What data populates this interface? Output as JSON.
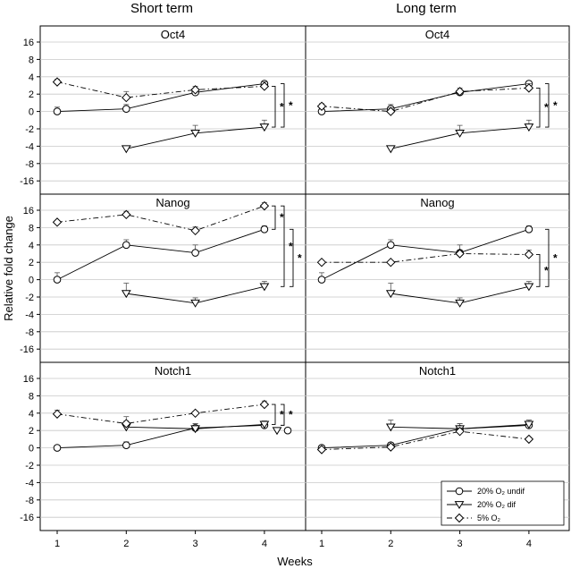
{
  "chart_data": {
    "type": "line",
    "column_titles": [
      "Short term",
      "Long term"
    ],
    "xlabel": "Weeks",
    "ylabel": "Relative fold change",
    "x_ticks": [
      "1",
      "2",
      "3",
      "4"
    ],
    "y_ticks": [
      "16",
      "8",
      "4",
      "2",
      "0",
      "-2",
      "-4",
      "-8",
      "-16"
    ],
    "y_scale": "symmetric-log (each gridline one step)",
    "grid": "horizontal",
    "legend": {
      "position": "bottom-right",
      "entries": [
        {
          "text": "20% O₂ undif",
          "marker": "circle",
          "line": "solid"
        },
        {
          "text": "20% O₂ dif",
          "marker": "triangle-down",
          "line": "solid"
        },
        {
          "text": "5% O₂",
          "marker": "diamond",
          "line": "dash-dot"
        }
      ]
    },
    "significance_mark": "*",
    "panels": [
      {
        "row": 0,
        "col": 0,
        "title": "Oct4",
        "series": [
          {
            "name": "20% O₂ undif",
            "x": [
              1,
              2,
              3,
              4
            ],
            "y": [
              0,
              0.3,
              2.2,
              3.2
            ],
            "err": [
              0.5,
              0.5,
              0.3,
              0.3
            ]
          },
          {
            "name": "20% O₂ dif",
            "x": [
              2,
              3,
              4
            ],
            "y": [
              -4.6,
              -2.5,
              -1.8
            ],
            "err": [
              0.6,
              0.9,
              0.8
            ]
          },
          {
            "name": "5% O₂",
            "x": [
              1,
              2,
              3,
              4
            ],
            "y": [
              3.4,
              1.6,
              2.5,
              2.9
            ],
            "err": [
              0.3,
              0.7,
              0.4,
              0.5
            ]
          }
        ],
        "brackets": [
          {
            "from": 2.9,
            "to": -1.8,
            "label": "*"
          },
          {
            "from": 3.2,
            "to": -1.8,
            "label": "*"
          }
        ]
      },
      {
        "row": 0,
        "col": 1,
        "title": "Oct4",
        "series": [
          {
            "name": "20% O₂ undif",
            "x": [
              1,
              2,
              3,
              4
            ],
            "y": [
              0,
              0.3,
              2.2,
              3.2
            ],
            "err": [
              0.5,
              0.5,
              0.3,
              0.3
            ]
          },
          {
            "name": "20% O₂ dif",
            "x": [
              2,
              3,
              4
            ],
            "y": [
              -4.6,
              -2.5,
              -1.8
            ],
            "err": [
              0.6,
              0.9,
              0.8
            ]
          },
          {
            "name": "5% O₂",
            "x": [
              1,
              2,
              3,
              4
            ],
            "y": [
              0.6,
              0,
              2.3,
              2.7
            ],
            "err": [
              0.3,
              0.4,
              0.4,
              0.5
            ]
          }
        ],
        "brackets": [
          {
            "from": 2.7,
            "to": -1.8,
            "label": "*"
          },
          {
            "from": 3.2,
            "to": -1.8,
            "label": "*"
          }
        ]
      },
      {
        "row": 1,
        "col": 0,
        "title": "Nanog",
        "series": [
          {
            "name": "20% O₂ undif",
            "x": [
              1,
              2,
              3,
              4
            ],
            "y": [
              0,
              4,
              3.1,
              7.6
            ],
            "err": [
              0.8,
              1.2,
              0.9,
              1.2
            ]
          },
          {
            "name": "20% O₂ dif",
            "x": [
              2,
              3,
              4
            ],
            "y": [
              -1.6,
              -2.7,
              -0.8
            ],
            "err": [
              1.2,
              0.6,
              0.6
            ]
          },
          {
            "name": "5% O₂",
            "x": [
              1,
              2,
              3,
              4
            ],
            "y": [
              10.5,
              14,
              7.3,
              18
            ],
            "err": [
              0.5,
              1.5,
              1,
              1.5
            ]
          }
        ],
        "brackets": [
          {
            "from": 18,
            "to": 7.6,
            "label": "*"
          },
          {
            "from": 18,
            "to": -0.8,
            "label": "*"
          },
          {
            "from": 7.6,
            "to": -0.8,
            "label": "*"
          }
        ]
      },
      {
        "row": 1,
        "col": 1,
        "title": "Nanog",
        "series": [
          {
            "name": "20% O₂ undif",
            "x": [
              1,
              2,
              3,
              4
            ],
            "y": [
              0,
              4,
              3.1,
              7.6
            ],
            "err": [
              0.8,
              1.2,
              0.9,
              1.2
            ]
          },
          {
            "name": "20% O₂ dif",
            "x": [
              2,
              3,
              4
            ],
            "y": [
              -1.6,
              -2.7,
              -0.8
            ],
            "err": [
              1.2,
              0.6,
              0.6
            ]
          },
          {
            "name": "5% O₂",
            "x": [
              1,
              2,
              3,
              4
            ],
            "y": [
              2,
              2,
              3,
              2.9
            ],
            "err": [
              0.2,
              0.2,
              0.3,
              0.5
            ]
          }
        ],
        "brackets": [
          {
            "from": 2.9,
            "to": -0.8,
            "label": "*"
          },
          {
            "from": 7.6,
            "to": -0.8,
            "label": "*"
          }
        ]
      },
      {
        "row": 2,
        "col": 0,
        "title": "Notch1",
        "series": [
          {
            "name": "20% O₂ undif",
            "x": [
              1,
              2,
              3,
              4
            ],
            "y": [
              0,
              0.3,
              2.3,
              2.6
            ],
            "err": [
              0.1,
              0.4,
              0.5,
              0.4
            ]
          },
          {
            "name": "20% O₂ dif",
            "x": [
              2,
              3,
              4
            ],
            "y": [
              2.4,
              2.2,
              2.7
            ],
            "err": [
              0.7,
              0.6,
              0.4
            ]
          },
          {
            "name": "5% O₂",
            "x": [
              1,
              2,
              3,
              4
            ],
            "y": [
              3.9,
              2.8,
              4,
              6
            ],
            "err": [
              0.8,
              0.8,
              0.4,
              0.8
            ]
          }
        ],
        "brackets": [
          {
            "from": 6,
            "to": 2.7,
            "label": "*"
          },
          {
            "from": 6,
            "to": 2.6,
            "label": "*"
          }
        ]
      },
      {
        "row": 2,
        "col": 1,
        "title": "Notch1",
        "series": [
          {
            "name": "20% O₂ undif",
            "x": [
              1,
              2,
              3,
              4
            ],
            "y": [
              0,
              0.3,
              2.2,
              2.6
            ],
            "err": [
              0.1,
              0.3,
              0.6,
              0.6
            ]
          },
          {
            "name": "20% O₂ dif",
            "x": [
              2,
              3,
              4
            ],
            "y": [
              2.4,
              2.2,
              2.7
            ],
            "err": [
              0.8,
              0.6,
              0.5
            ]
          },
          {
            "name": "5% O₂",
            "x": [
              1,
              2,
              3,
              4
            ],
            "y": [
              -0.2,
              0.1,
              1.9,
              1
            ],
            "err": [
              0.2,
              0.3,
              0.4,
              0.2
            ]
          }
        ],
        "brackets": []
      }
    ]
  }
}
